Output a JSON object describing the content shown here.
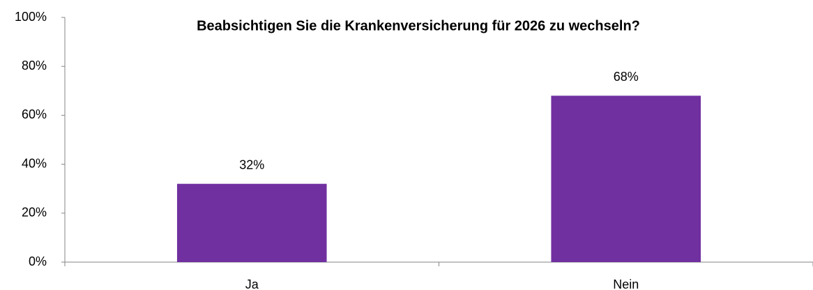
{
  "chart_data": {
    "type": "bar",
    "title": "Beabsichtigen Sie die Krankenversicherung für 2026 zu wechseln?",
    "categories": [
      "Ja",
      "Nein"
    ],
    "values": [
      32,
      68
    ],
    "value_labels": [
      "32%",
      "68%"
    ],
    "color": "#7030a0",
    "ylim": [
      0,
      100
    ],
    "yticks": [
      {
        "value": 0,
        "label": "0%"
      },
      {
        "value": 20,
        "label": "20%"
      },
      {
        "value": 40,
        "label": "40%"
      },
      {
        "value": 60,
        "label": "60%"
      },
      {
        "value": 80,
        "label": "80%"
      },
      {
        "value": 100,
        "label": "100%"
      }
    ],
    "grid": false
  }
}
